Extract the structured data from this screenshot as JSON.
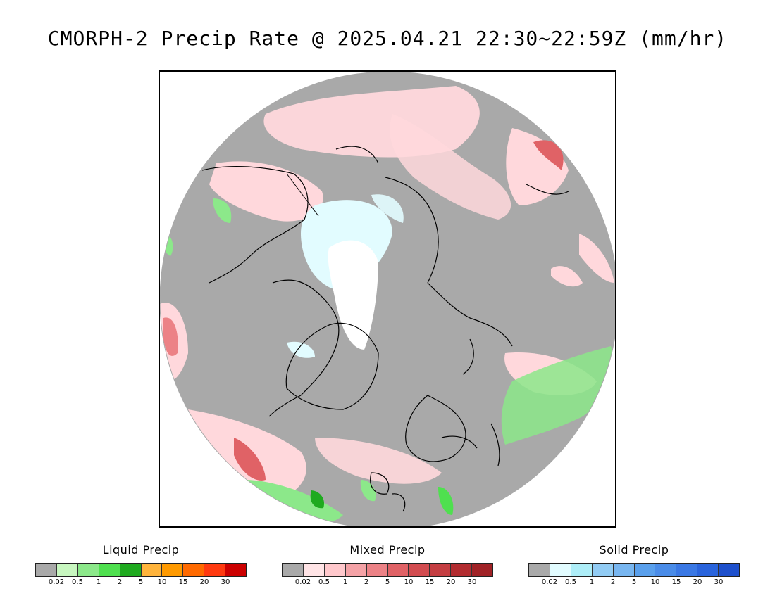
{
  "title": "CMORPH-2 Precip Rate @ 2025.04.21 22:30~22:59Z (mm/hr)",
  "map": {
    "projection": "north-polar-stereographic",
    "background_color": "#a9a9a9",
    "coastline_color": "#000000"
  },
  "legends": [
    {
      "key": "liquid",
      "title": "Liquid Precip",
      "colors": [
        "#a9a9a9",
        "#c8f7c0",
        "#8ce88a",
        "#4fe04f",
        "#1faa1f",
        "#ffb43c",
        "#ff9a00",
        "#ff6a00",
        "#ff3a10",
        "#cc0000"
      ],
      "ticks": [
        "0.02",
        "0.5",
        "1",
        "2",
        "5",
        "10",
        "15",
        "20",
        "30"
      ]
    },
    {
      "key": "mixed",
      "title": "Mixed Precip",
      "colors": [
        "#a9a9a9",
        "#ffe4e6",
        "#ffc8cc",
        "#f4a2a6",
        "#ec8286",
        "#e06266",
        "#d24c50",
        "#c43e42",
        "#b22c30",
        "#a02226"
      ],
      "ticks": [
        "0.02",
        "0.5",
        "1",
        "2",
        "5",
        "10",
        "15",
        "20",
        "30"
      ]
    },
    {
      "key": "solid",
      "title": "Solid Precip",
      "colors": [
        "#a9a9a9",
        "#e2fcff",
        "#aeeef8",
        "#92ccf4",
        "#78b6f0",
        "#5aa0ec",
        "#4a8ce8",
        "#3a78e4",
        "#2a64dc",
        "#1e50cc"
      ],
      "ticks": [
        "0.02",
        "0.5",
        "1",
        "2",
        "5",
        "10",
        "15",
        "20",
        "30"
      ]
    }
  ]
}
